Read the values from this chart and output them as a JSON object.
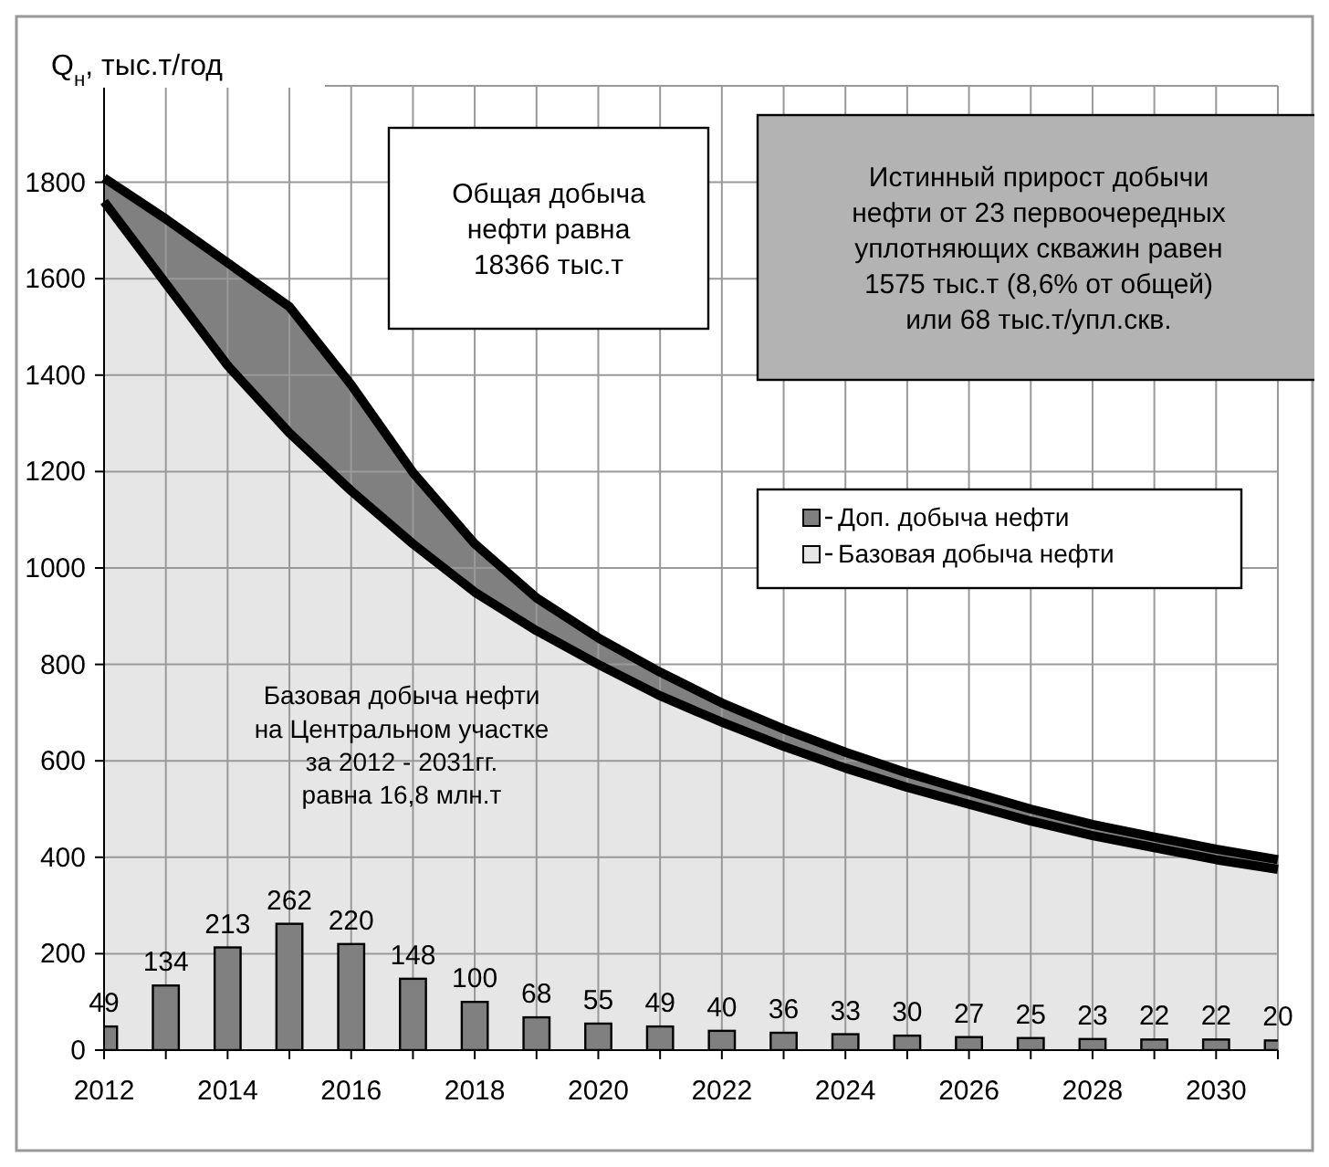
{
  "chart_data": {
    "type": "area",
    "ylabel": "Q$_{н}$, тыс.т/год",
    "x": [
      2012,
      2013,
      2014,
      2015,
      2016,
      2017,
      2018,
      2019,
      2020,
      2021,
      2022,
      2023,
      2024,
      2025,
      2026,
      2027,
      2028,
      2029,
      2030,
      2031
    ],
    "xlim": [
      2012,
      2031
    ],
    "xticks": [
      2012,
      {
        "value": 2013,
        "label": null
      },
      2014,
      {
        "value": 2015,
        "label": null
      },
      2016,
      {
        "value": 2017,
        "label": null
      },
      2018,
      {
        "value": 2019,
        "label": null
      },
      2020,
      {
        "value": 2021,
        "label": null
      },
      2022,
      {
        "value": 2023,
        "label": null
      },
      2024,
      {
        "value": 2025,
        "label": null
      },
      2026,
      {
        "value": 2027,
        "label": null
      },
      2028,
      {
        "value": 2029,
        "label": null
      },
      2030,
      {
        "value": 2031,
        "label": null
      }
    ],
    "ylim": [
      0,
      2000
    ],
    "yticks": [
      0,
      200,
      400,
      600,
      800,
      1000,
      1200,
      1400,
      1600,
      1800,
      {
        "value": 2000,
        "label": null
      }
    ],
    "grid": true,
    "stacked": true,
    "legend": "right",
    "series": [
      {
        "name": "Базовая добыча нефти",
        "color": "#e6e6e6",
        "values": [
          1760,
          1590,
          1420,
          1280,
          1160,
          1050,
          950,
          870,
          800,
          735,
          680,
          630,
          585,
          545,
          510,
          475,
          445,
          420,
          395,
          375
        ]
      },
      {
        "name": "Доп. добыча нефти",
        "color": "#808080",
        "values": [
          49,
          134,
          213,
          262,
          220,
          148,
          100,
          68,
          55,
          49,
          40,
          36,
          33,
          30,
          27,
          25,
          23,
          22,
          22,
          20
        ]
      },
      {
        "type": "bar",
        "color": "#808080",
        "values": [
          49,
          134,
          213,
          262,
          220,
          148,
          100,
          68,
          55,
          49,
          40,
          36,
          33,
          30,
          27,
          25,
          23,
          22,
          22,
          20
        ],
        "value_labels": [
          "49",
          "134",
          "213",
          "262",
          "220",
          "148",
          "100",
          "68",
          "55",
          "49",
          "40",
          "36",
          "33",
          "30",
          "27",
          "25",
          "23",
          "22",
          "22",
          "20"
        ]
      }
    ],
    "annotations": [
      "Общая добыча\nнефти равна\n18366 тыс.т",
      "Истинный прирост добычи\nнефти от 23 первоочередных\nуплотняющих скважин равен\n1575 тыс.т (8,6% от общей)\nили 68 тыс.т/упл.скв.",
      "Базовая добыча  нефти\nна Центральном  участке\nза 2012 - 2031гг.\nравна 16,8 млн.т"
    ]
  }
}
